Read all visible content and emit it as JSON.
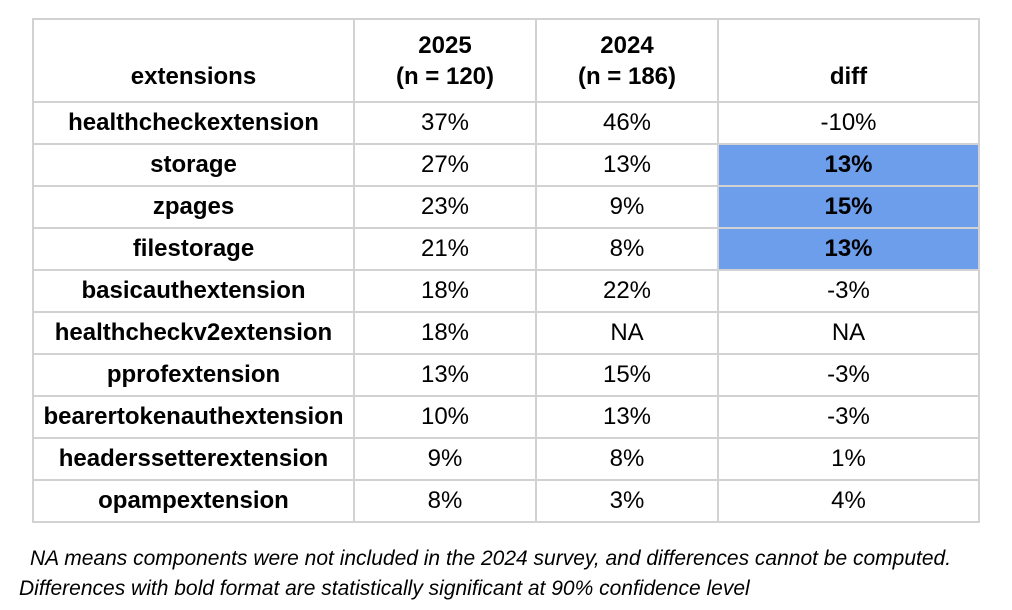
{
  "colors": {
    "highlight_blue": "#6d9eeb",
    "border_gray": "#d2d2d2",
    "text": "#000000",
    "background": "#ffffff"
  },
  "table": {
    "columns": {
      "extensions": "extensions",
      "y2025": "2025\n(n = 120)",
      "y2024": "2024\n(n = 186)",
      "diff": "diff"
    },
    "rows": [
      {
        "extension": "healthcheckextension",
        "y2025": "37%",
        "y2024": "46%",
        "diff": "-10%",
        "highlight": false
      },
      {
        "extension": "storage",
        "y2025": "27%",
        "y2024": "13%",
        "diff": "13%",
        "highlight": true
      },
      {
        "extension": "zpages",
        "y2025": "23%",
        "y2024": "9%",
        "diff": "15%",
        "highlight": true
      },
      {
        "extension": "filestorage",
        "y2025": "21%",
        "y2024": "8%",
        "diff": "13%",
        "highlight": true
      },
      {
        "extension": "basicauthextension",
        "y2025": "18%",
        "y2024": "22%",
        "diff": "-3%",
        "highlight": false
      },
      {
        "extension": "healthcheckv2extension",
        "y2025": "18%",
        "y2024": "NA",
        "diff": "NA",
        "highlight": false
      },
      {
        "extension": "pprofextension",
        "y2025": "13%",
        "y2024": "15%",
        "diff": "-3%",
        "highlight": false
      },
      {
        "extension": "bearertokenauthextension",
        "y2025": "10%",
        "y2024": "13%",
        "diff": "-3%",
        "highlight": false
      },
      {
        "extension": "headerssetterextension",
        "y2025": "9%",
        "y2024": "8%",
        "diff": "1%",
        "highlight": false
      },
      {
        "extension": "opampextension",
        "y2025": "8%",
        "y2024": "3%",
        "diff": "4%",
        "highlight": false
      }
    ]
  },
  "footnotes": {
    "line1": "NA means components were not included in the 2024 survey, and differences cannot be computed.",
    "line2": "Differences with bold format are statistically significant at 90% confidence level"
  },
  "chart_data": {
    "type": "table",
    "title": "",
    "columns": [
      "extensions",
      "2025 (n = 120)",
      "2024 (n = 186)",
      "diff"
    ],
    "categories": [
      "healthcheckextension",
      "storage",
      "zpages",
      "filestorage",
      "basicauthextension",
      "healthcheckv2extension",
      "pprofextension",
      "bearertokenauthextension",
      "headerssetterextension",
      "opampextension"
    ],
    "series": [
      {
        "name": "2025 (n = 120)",
        "values": [
          37,
          27,
          23,
          21,
          18,
          18,
          13,
          10,
          9,
          8
        ]
      },
      {
        "name": "2024 (n = 186)",
        "values": [
          46,
          13,
          9,
          8,
          22,
          null,
          15,
          13,
          8,
          3
        ]
      },
      {
        "name": "diff",
        "values": [
          -10,
          13,
          15,
          13,
          -3,
          null,
          -3,
          -3,
          1,
          4
        ]
      }
    ],
    "significant_diff_rows": [
      "storage",
      "zpages",
      "filestorage"
    ],
    "na_note": "NA means components were not included in the 2024 survey, and differences cannot be computed.",
    "bold_note": "Differences with bold format are statistically significant at 90% confidence level"
  }
}
